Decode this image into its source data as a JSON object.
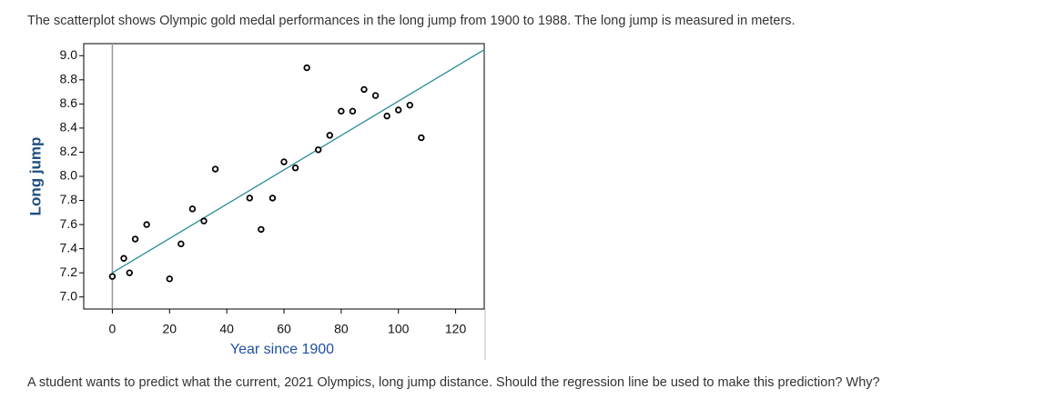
{
  "intro": "The scatterplot shows Olympic gold medal performances in the long jump from 1900 to 1988. The long jump is measured in meters.",
  "chart_data": {
    "type": "scatter",
    "xlabel": "Year since 1900",
    "ylabel": "Long jump",
    "x": [
      0,
      6,
      4,
      8,
      12,
      20,
      24,
      28,
      32,
      36,
      48,
      52,
      56,
      60,
      64,
      68,
      72,
      76,
      80,
      84,
      88,
      92,
      96,
      100,
      104,
      108
    ],
    "y": [
      7.17,
      7.2,
      7.32,
      7.48,
      7.6,
      7.15,
      7.44,
      7.73,
      7.63,
      8.06,
      7.82,
      7.56,
      7.82,
      8.12,
      8.07,
      8.9,
      8.22,
      8.34,
      8.54,
      8.54,
      8.72,
      8.67,
      8.5,
      8.55,
      8.59,
      8.32
    ],
    "color": "#000000",
    "trendline": {
      "x": [
        0,
        130
      ],
      "y": [
        7.2,
        9.05
      ],
      "color": "#2a8a9a"
    },
    "vline": 0,
    "xlim": [
      -10,
      130
    ],
    "ylim": [
      6.9,
      9.1
    ],
    "xticks": [
      0,
      20,
      40,
      60,
      80,
      100,
      120
    ],
    "yticks": [
      {
        "value": 7,
        "label": "7.0"
      },
      7.2,
      7.4,
      7.6,
      7.8,
      {
        "value": 8,
        "label": "8.0"
      },
      8.2,
      8.4,
      8.6,
      8.8,
      {
        "value": 9,
        "label": "9.0"
      }
    ]
  },
  "question": "A student wants to predict what the current, 2021 Olympics, long jump distance. Should the regression line be used to make this prediction? Why?"
}
